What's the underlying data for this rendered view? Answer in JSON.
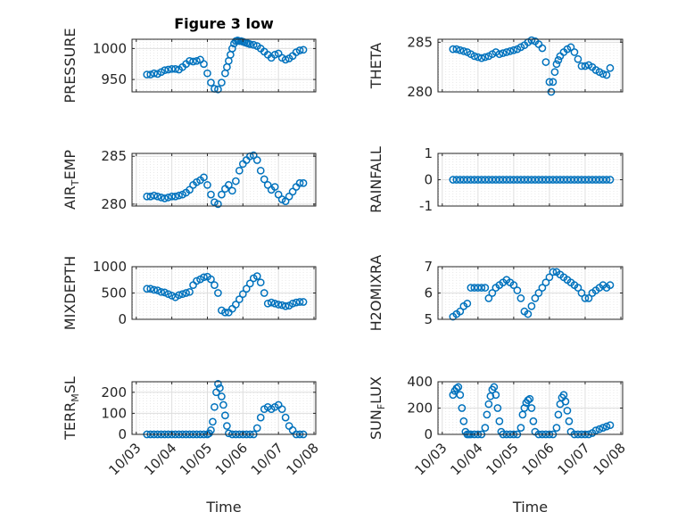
{
  "title": "Figure 3 low",
  "xlabel": "Time",
  "x_tick_labels": [
    "10/03",
    "10/04",
    "10/05",
    "10/06",
    "10/07",
    "10/08"
  ],
  "marker_color": "#0072BD",
  "chart_data": [
    {
      "type": "scatter",
      "ylabel": "PRESSURE",
      "ylim": [
        930,
        1015
      ],
      "yticks": [
        950,
        1000
      ],
      "grid": true,
      "x": [
        0.3,
        0.4,
        0.5,
        0.6,
        0.7,
        0.8,
        0.9,
        1.0,
        1.1,
        1.2,
        1.3,
        1.4,
        1.5,
        1.6,
        1.7,
        1.8,
        1.9,
        2.0,
        2.1,
        2.2,
        2.3,
        2.4,
        2.5,
        2.55,
        2.6,
        2.65,
        2.7,
        2.75,
        2.8,
        2.85,
        2.9,
        2.95,
        3.0,
        3.05,
        3.1,
        3.15,
        3.2,
        3.3,
        3.4,
        3.5,
        3.6,
        3.7,
        3.8,
        3.9,
        4.0,
        4.1,
        4.2,
        4.3,
        4.4,
        4.5,
        4.6,
        4.7
      ],
      "values": [
        958,
        958,
        960,
        959,
        962,
        965,
        966,
        967,
        967,
        966,
        970,
        975,
        980,
        979,
        980,
        982,
        975,
        960,
        945,
        935,
        934,
        945,
        960,
        970,
        980,
        990,
        1000,
        1008,
        1012,
        1013,
        1012,
        1012,
        1011,
        1010,
        1009,
        1008,
        1007,
        1006,
        1004,
        1000,
        995,
        990,
        985,
        990,
        992,
        985,
        982,
        984,
        988,
        994,
        997,
        998
      ]
    },
    {
      "type": "scatter",
      "ylabel": "THETA",
      "ylim": [
        280,
        285.3
      ],
      "yticks": [
        280,
        285
      ],
      "grid": true,
      "x": [
        0.3,
        0.4,
        0.5,
        0.6,
        0.7,
        0.8,
        0.9,
        1.0,
        1.1,
        1.2,
        1.3,
        1.4,
        1.5,
        1.6,
        1.7,
        1.8,
        1.9,
        2.0,
        2.1,
        2.2,
        2.3,
        2.4,
        2.5,
        2.6,
        2.7,
        2.8,
        2.9,
        3.0,
        3.05,
        3.1,
        3.15,
        3.2,
        3.25,
        3.3,
        3.4,
        3.5,
        3.6,
        3.7,
        3.8,
        3.9,
        4.0,
        4.1,
        4.2,
        4.3,
        4.4,
        4.5,
        4.6,
        4.7
      ],
      "values": [
        284.3,
        284.3,
        284.2,
        284.1,
        284.0,
        283.8,
        283.6,
        283.5,
        283.4,
        283.5,
        283.6,
        283.8,
        284.0,
        283.8,
        283.9,
        284.0,
        284.1,
        284.2,
        284.3,
        284.5,
        284.7,
        285.0,
        285.2,
        285.1,
        284.8,
        284.4,
        283.0,
        281.0,
        280.0,
        281.0,
        282.0,
        282.8,
        283.2,
        283.6,
        284.0,
        284.3,
        284.5,
        284.0,
        283.3,
        282.6,
        282.6,
        282.7,
        282.5,
        282.2,
        282.0,
        281.8,
        281.7,
        282.4
      ]
    },
    {
      "type": "scatter",
      "ylabel": "AIR_TEMP",
      "ylim": [
        279.8,
        285.3
      ],
      "yticks": [
        280,
        285
      ],
      "grid": true,
      "x": [
        0.3,
        0.4,
        0.5,
        0.6,
        0.7,
        0.8,
        0.9,
        1.0,
        1.1,
        1.2,
        1.3,
        1.4,
        1.5,
        1.6,
        1.7,
        1.8,
        1.9,
        2.0,
        2.1,
        2.2,
        2.3,
        2.4,
        2.5,
        2.6,
        2.7,
        2.8,
        2.9,
        3.0,
        3.1,
        3.2,
        3.3,
        3.4,
        3.5,
        3.6,
        3.7,
        3.8,
        3.9,
        4.0,
        4.1,
        4.2,
        4.3,
        4.4,
        4.5,
        4.6,
        4.7
      ],
      "values": [
        280.8,
        280.8,
        280.9,
        280.8,
        280.7,
        280.6,
        280.7,
        280.8,
        280.8,
        280.9,
        281.0,
        281.2,
        281.5,
        282.0,
        282.3,
        282.5,
        282.8,
        282.0,
        281.0,
        280.2,
        280.0,
        281.0,
        281.6,
        282.0,
        281.4,
        282.4,
        283.5,
        284.2,
        284.6,
        285.0,
        285.1,
        284.6,
        283.5,
        282.6,
        282.0,
        281.5,
        281.8,
        281.0,
        280.5,
        280.3,
        280.8,
        281.3,
        281.8,
        282.2,
        282.2
      ]
    },
    {
      "type": "scatter",
      "ylabel": "RAINFALL",
      "ylim": [
        -1,
        1
      ],
      "yticks": [
        -1,
        0,
        1
      ],
      "grid": true,
      "x": [
        0.3,
        0.4,
        0.5,
        0.6,
        0.7,
        0.8,
        0.9,
        1.0,
        1.1,
        1.2,
        1.3,
        1.4,
        1.5,
        1.6,
        1.7,
        1.8,
        1.9,
        2.0,
        2.1,
        2.2,
        2.3,
        2.4,
        2.5,
        2.6,
        2.7,
        2.8,
        2.9,
        3.0,
        3.1,
        3.2,
        3.3,
        3.4,
        3.5,
        3.6,
        3.7,
        3.8,
        3.9,
        4.0,
        4.1,
        4.2,
        4.3,
        4.4,
        4.5,
        4.6,
        4.7
      ],
      "values": [
        0,
        0,
        0,
        0,
        0,
        0,
        0,
        0,
        0,
        0,
        0,
        0,
        0,
        0,
        0,
        0,
        0,
        0,
        0,
        0,
        0,
        0,
        0,
        0,
        0,
        0,
        0,
        0,
        0,
        0,
        0,
        0,
        0,
        0,
        0,
        0,
        0,
        0,
        0,
        0,
        0,
        0,
        0,
        0,
        0
      ]
    },
    {
      "type": "scatter",
      "ylabel": "MIXDEPTH",
      "ylim": [
        0,
        1000
      ],
      "yticks": [
        0,
        500,
        1000
      ],
      "grid": true,
      "x": [
        0.3,
        0.4,
        0.5,
        0.6,
        0.7,
        0.8,
        0.9,
        1.0,
        1.1,
        1.2,
        1.3,
        1.4,
        1.5,
        1.6,
        1.7,
        1.8,
        1.9,
        2.0,
        2.1,
        2.2,
        2.3,
        2.4,
        2.5,
        2.6,
        2.7,
        2.8,
        2.9,
        3.0,
        3.1,
        3.2,
        3.3,
        3.4,
        3.5,
        3.6,
        3.7,
        3.8,
        3.9,
        4.0,
        4.1,
        4.2,
        4.3,
        4.4,
        4.5,
        4.6,
        4.7
      ],
      "values": [
        580,
        580,
        560,
        550,
        520,
        510,
        480,
        450,
        420,
        460,
        480,
        500,
        520,
        650,
        730,
        760,
        800,
        810,
        760,
        650,
        500,
        170,
        130,
        130,
        200,
        280,
        380,
        480,
        580,
        680,
        780,
        820,
        700,
        500,
        300,
        320,
        300,
        280,
        270,
        250,
        260,
        300,
        320,
        330,
        330
      ]
    },
    {
      "type": "scatter",
      "ylabel": "H2OMIXRA",
      "ylim": [
        5,
        7
      ],
      "yticks": [
        5,
        6,
        7
      ],
      "grid": true,
      "x": [
        0.3,
        0.4,
        0.5,
        0.6,
        0.7,
        0.8,
        0.9,
        1.0,
        1.1,
        1.2,
        1.3,
        1.4,
        1.5,
        1.6,
        1.7,
        1.8,
        1.9,
        2.0,
        2.1,
        2.2,
        2.3,
        2.4,
        2.5,
        2.6,
        2.7,
        2.8,
        2.9,
        3.0,
        3.1,
        3.2,
        3.3,
        3.4,
        3.5,
        3.6,
        3.7,
        3.8,
        3.9,
        4.0,
        4.1,
        4.2,
        4.3,
        4.4,
        4.5,
        4.6,
        4.7
      ],
      "values": [
        5.1,
        5.2,
        5.3,
        5.5,
        5.6,
        6.2,
        6.2,
        6.2,
        6.2,
        6.2,
        5.8,
        6.0,
        6.2,
        6.3,
        6.4,
        6.5,
        6.4,
        6.3,
        6.1,
        5.8,
        5.3,
        5.2,
        5.5,
        5.8,
        6.0,
        6.2,
        6.4,
        6.6,
        6.8,
        6.8,
        6.7,
        6.6,
        6.5,
        6.4,
        6.3,
        6.2,
        6.0,
        5.8,
        5.8,
        6.0,
        6.1,
        6.2,
        6.3,
        6.2,
        6.3
      ]
    },
    {
      "type": "scatter",
      "ylabel": "TERR_MSL",
      "ylim": [
        0,
        250
      ],
      "yticks": [
        0,
        100,
        200
      ],
      "grid": true,
      "x": [
        0.3,
        0.4,
        0.5,
        0.6,
        0.7,
        0.8,
        0.9,
        1.0,
        1.1,
        1.2,
        1.3,
        1.4,
        1.5,
        1.6,
        1.7,
        1.8,
        1.9,
        2.0,
        2.05,
        2.1,
        2.15,
        2.2,
        2.25,
        2.3,
        2.35,
        2.4,
        2.45,
        2.5,
        2.55,
        2.6,
        2.7,
        2.8,
        2.9,
        3.0,
        3.1,
        3.2,
        3.3,
        3.4,
        3.5,
        3.6,
        3.7,
        3.8,
        3.9,
        4.0,
        4.1,
        4.2,
        4.3,
        4.4,
        4.5,
        4.6,
        4.7
      ],
      "values": [
        0,
        0,
        0,
        0,
        0,
        0,
        0,
        0,
        0,
        0,
        0,
        0,
        0,
        0,
        0,
        0,
        0,
        0,
        5,
        20,
        60,
        130,
        200,
        240,
        220,
        180,
        140,
        90,
        40,
        5,
        0,
        0,
        0,
        0,
        0,
        0,
        0,
        30,
        80,
        120,
        130,
        120,
        130,
        140,
        120,
        80,
        40,
        20,
        0,
        0,
        0
      ]
    },
    {
      "type": "scatter",
      "ylabel": "SUN_FLUX",
      "ylim": [
        0,
        400
      ],
      "yticks": [
        0,
        200,
        400
      ],
      "grid": true,
      "x": [
        0.3,
        0.35,
        0.4,
        0.45,
        0.5,
        0.55,
        0.6,
        0.65,
        0.7,
        0.75,
        0.8,
        0.9,
        1.0,
        1.1,
        1.2,
        1.25,
        1.3,
        1.35,
        1.4,
        1.45,
        1.5,
        1.55,
        1.6,
        1.65,
        1.7,
        1.8,
        1.9,
        2.0,
        2.1,
        2.2,
        2.25,
        2.3,
        2.35,
        2.4,
        2.45,
        2.5,
        2.55,
        2.6,
        2.7,
        2.8,
        2.9,
        3.0,
        3.1,
        3.2,
        3.25,
        3.3,
        3.35,
        3.4,
        3.45,
        3.5,
        3.55,
        3.6,
        3.7,
        3.8,
        3.9,
        4.0,
        4.1,
        4.2,
        4.3,
        4.4,
        4.5,
        4.6,
        4.7
      ],
      "values": [
        300,
        330,
        350,
        360,
        300,
        200,
        100,
        20,
        0,
        0,
        0,
        0,
        0,
        0,
        50,
        150,
        230,
        290,
        340,
        360,
        300,
        200,
        100,
        20,
        0,
        0,
        0,
        0,
        0,
        50,
        150,
        200,
        240,
        260,
        270,
        200,
        100,
        20,
        0,
        0,
        0,
        0,
        0,
        50,
        150,
        230,
        280,
        300,
        250,
        180,
        100,
        20,
        0,
        0,
        0,
        0,
        0,
        10,
        30,
        40,
        50,
        60,
        70
      ]
    }
  ]
}
